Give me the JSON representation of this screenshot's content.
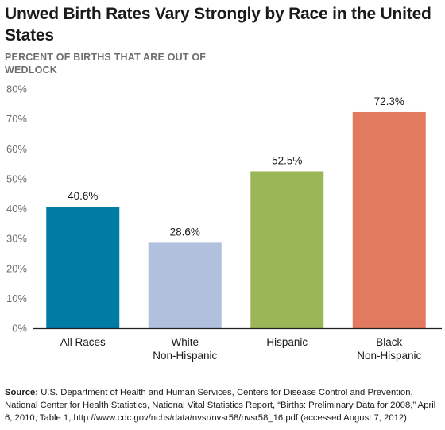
{
  "title": "Unwed Birth Rates Vary Strongly by Race in the United States",
  "subtitle": "PERCENT OF BIRTHS THAT ARE OUT OF WEDLOCK",
  "source_label": "Source:",
  "source_text": "U.S. Department of Health and Human Services, Centers for Disease Control and Prevention, National Center for Health Statistics, National Vital Statistics Report, “Births: Preliminary Data for 2008,” April 6, 2010, Table 1, http://www.cdc.gov/nchs/data/nvsr/nvsr58/nvsr58_16.pdf (accessed August 7, 2012).",
  "chart_data": {
    "type": "bar",
    "categories": [
      [
        "All Races"
      ],
      [
        "White",
        "Non-Hispanic"
      ],
      [
        "Hispanic"
      ],
      [
        "Black",
        "Non-Hispanic"
      ]
    ],
    "values": [
      40.6,
      28.6,
      52.5,
      72.3
    ],
    "data_labels": [
      "40.6%",
      "28.6%",
      "52.5%",
      "72.3%"
    ],
    "colors": [
      "#007ba4",
      "#b1c0dd",
      "#9bb656",
      "#e27a5f"
    ],
    "ylim": [
      0,
      80
    ],
    "yticks": [
      0,
      10,
      20,
      30,
      40,
      50,
      60,
      70,
      80
    ],
    "ytick_labels": [
      "0%",
      "10%",
      "20%",
      "30%",
      "40%",
      "50%",
      "60%",
      "70%",
      "80%"
    ],
    "grid": false,
    "legend": "none"
  }
}
